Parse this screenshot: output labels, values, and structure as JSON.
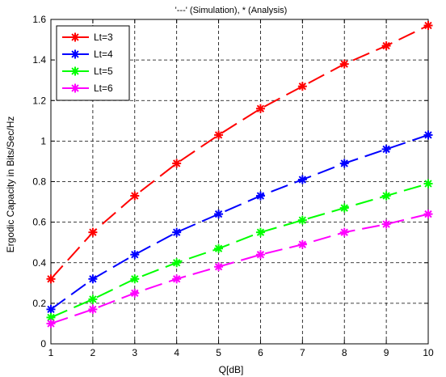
{
  "chart_data": {
    "type": "line",
    "title": "'---' (Simulation), * (Analysis)",
    "xlabel": "Q[dB]",
    "ylabel": "Ergodic Capacity in Bits/Sec/Hz",
    "x": [
      1,
      2,
      3,
      4,
      5,
      6,
      7,
      8,
      9,
      10
    ],
    "xlim": [
      1,
      10
    ],
    "ylim": [
      0,
      1.6
    ],
    "xticks": [
      "1",
      "2",
      "3",
      "4",
      "5",
      "6",
      "7",
      "8",
      "9",
      "10"
    ],
    "yticks": [
      "0",
      "0.2",
      "0.4",
      "0.6",
      "0.8",
      "1",
      "1.2",
      "1.4",
      "1.6"
    ],
    "grid": true,
    "legend_position": "top-left",
    "series": [
      {
        "name": "Lt=3",
        "color": "#ff0000",
        "values": [
          0.32,
          0.55,
          0.73,
          0.89,
          1.03,
          1.16,
          1.27,
          1.38,
          1.47,
          1.57
        ]
      },
      {
        "name": "Lt=4",
        "color": "#0000ff",
        "values": [
          0.17,
          0.32,
          0.44,
          0.55,
          0.64,
          0.73,
          0.81,
          0.89,
          0.96,
          1.03
        ]
      },
      {
        "name": "Lt=5",
        "color": "#00ff00",
        "values": [
          0.13,
          0.22,
          0.32,
          0.4,
          0.47,
          0.55,
          0.61,
          0.67,
          0.73,
          0.79
        ]
      },
      {
        "name": "Lt=6",
        "color": "#ff00ff",
        "values": [
          0.1,
          0.17,
          0.25,
          0.32,
          0.38,
          0.44,
          0.49,
          0.55,
          0.59,
          0.64
        ]
      }
    ]
  }
}
